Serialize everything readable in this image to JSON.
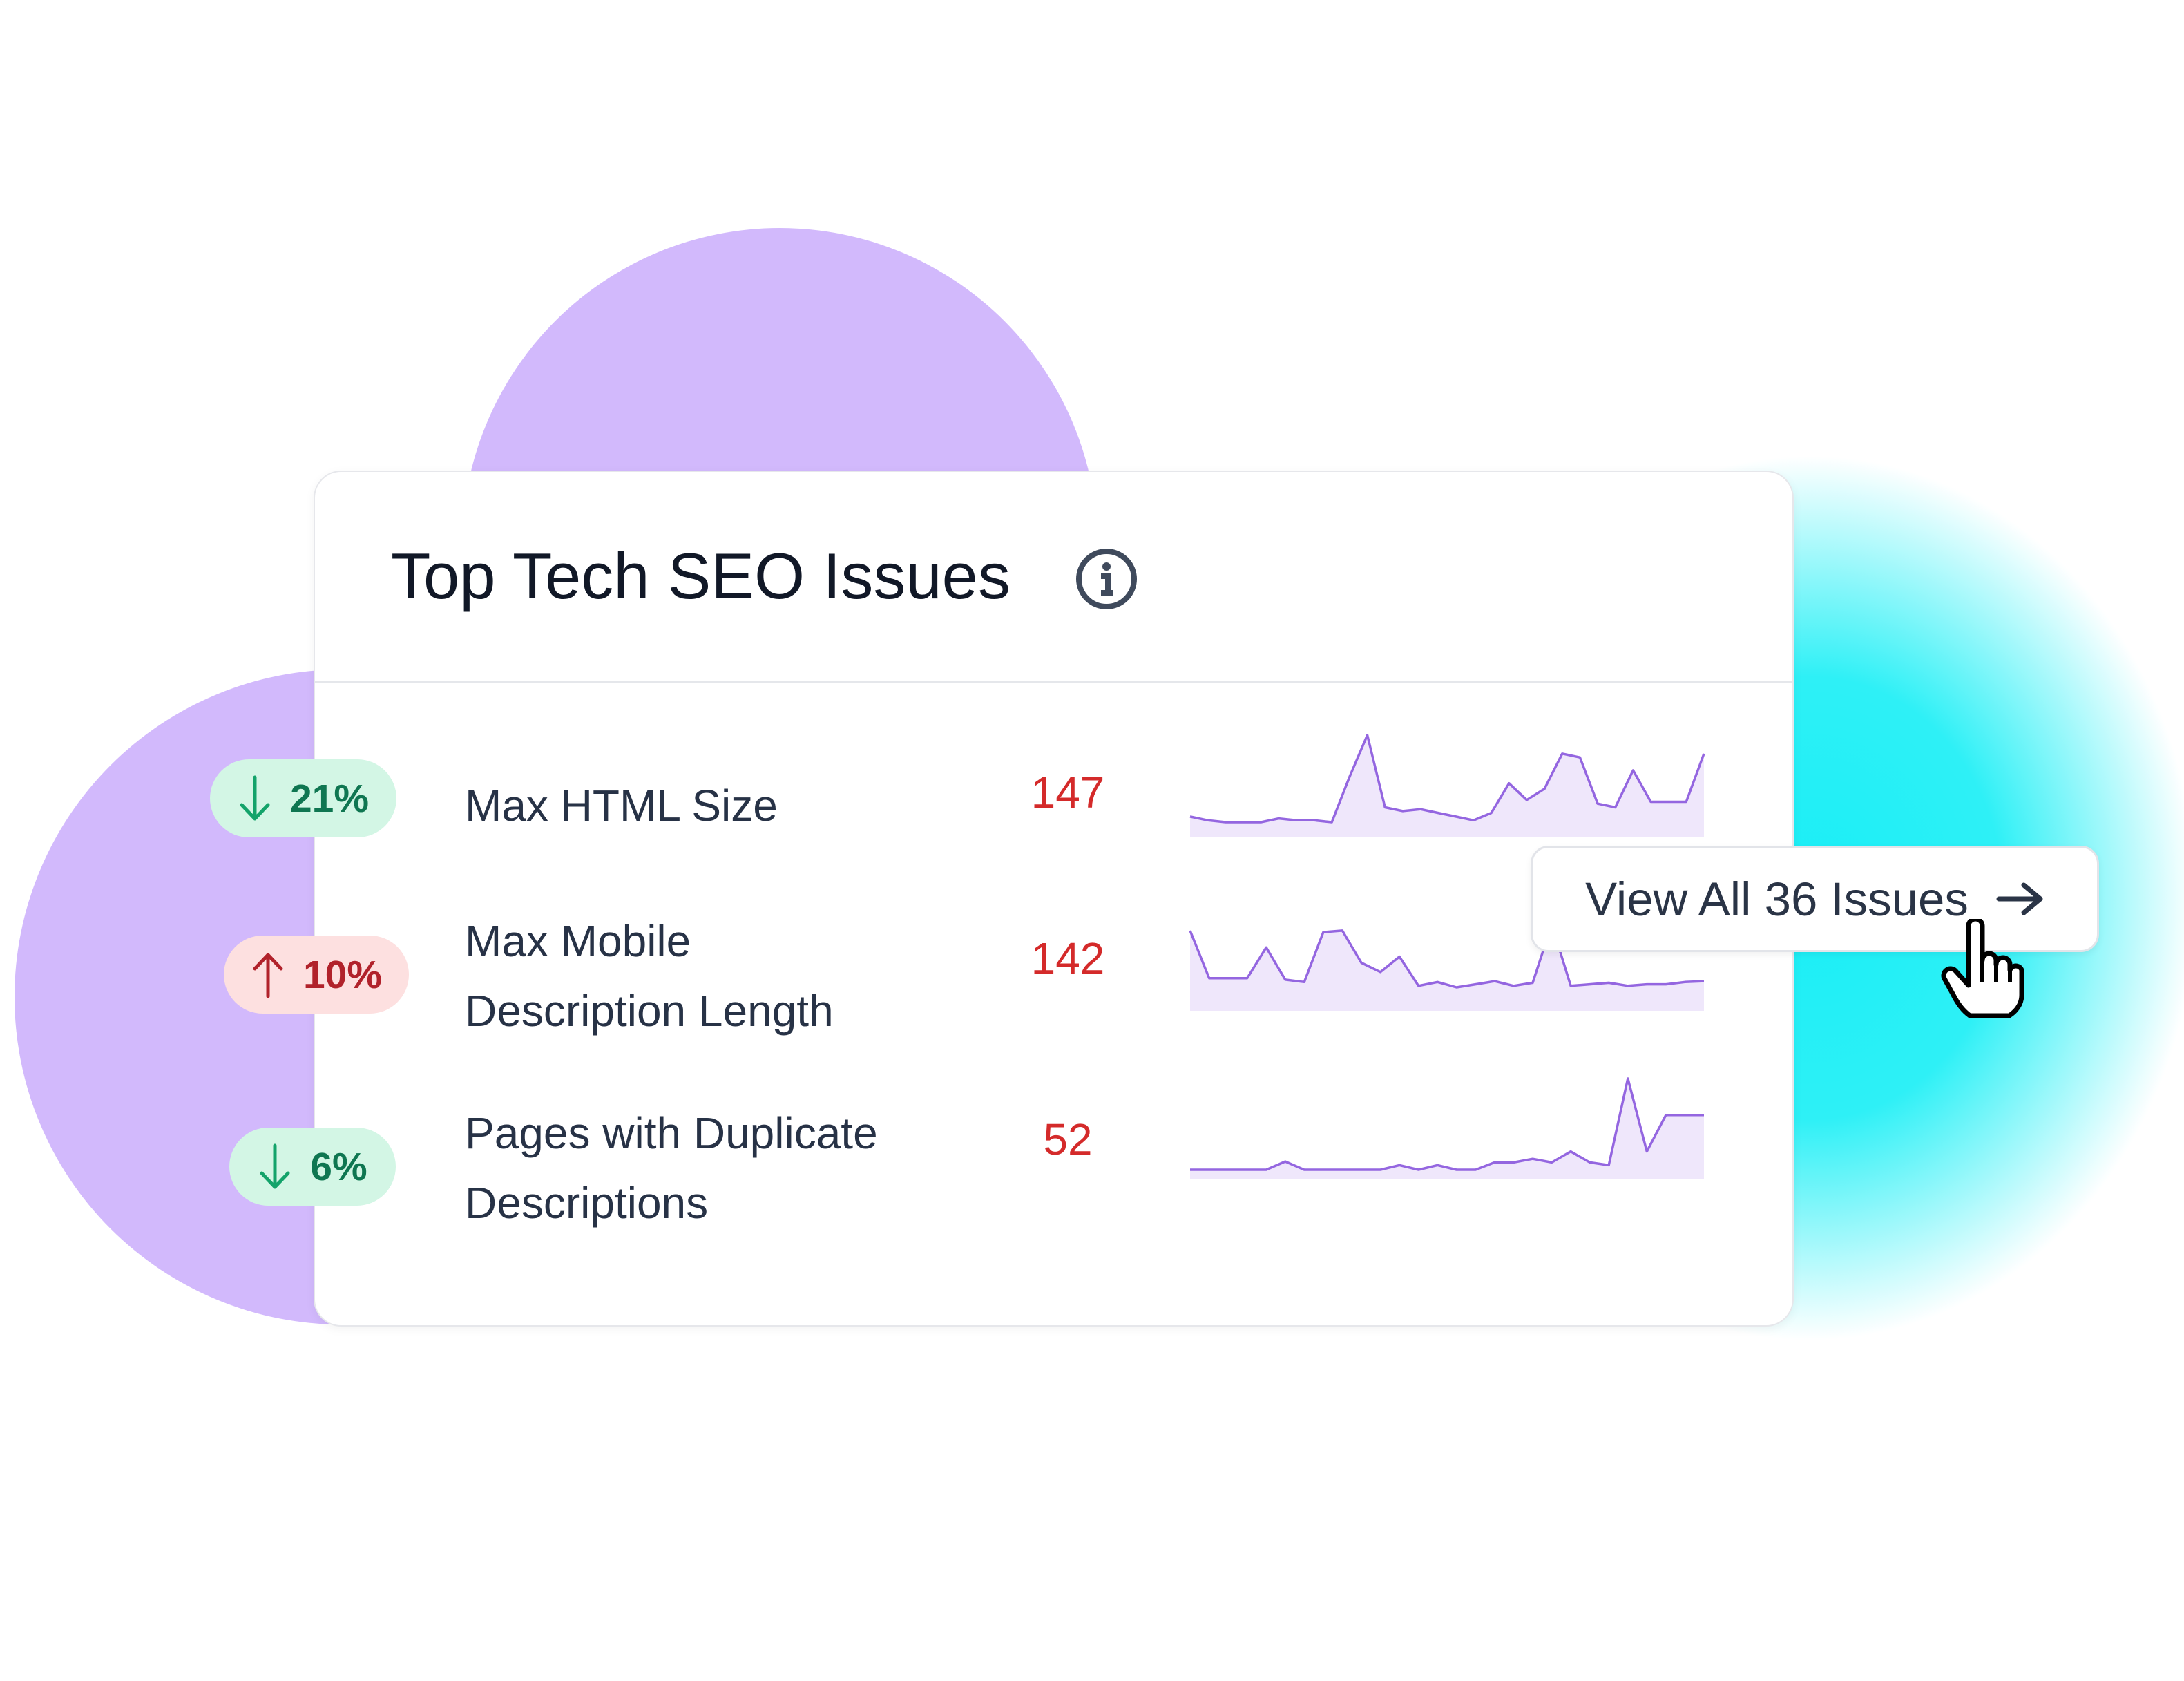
{
  "card": {
    "title": "Top Tech SEO Issues",
    "rows": [
      {
        "change": "21%",
        "direction": "down",
        "name": "Max HTML Size",
        "count": 147,
        "trend": [
          12,
          8,
          6,
          6,
          6,
          10,
          8,
          8,
          6,
          55,
          100,
          22,
          18,
          20,
          16,
          12,
          8,
          16,
          48,
          30,
          42,
          80,
          76,
          26,
          22,
          62,
          28,
          28,
          28,
          80
        ]
      },
      {
        "change": "10%",
        "direction": "up",
        "name": "Max Mobile Description Length",
        "count": 142,
        "trend": [
          92,
          30,
          30,
          30,
          70,
          28,
          25,
          90,
          92,
          50,
          38,
          58,
          20,
          25,
          18,
          22,
          26,
          20,
          24,
          100,
          20,
          22,
          24,
          20,
          22,
          22,
          25,
          26
        ]
      },
      {
        "change": "6%",
        "direction": "down",
        "name": "Pages with Duplicate Descriptions",
        "count": 52,
        "trend": [
          0,
          0,
          0,
          0,
          0,
          9,
          0,
          0,
          0,
          0,
          0,
          5,
          0,
          5,
          0,
          0,
          8,
          8,
          12,
          8,
          20,
          8,
          5,
          100,
          20,
          60,
          60,
          60
        ]
      }
    ]
  },
  "button": {
    "label": "View All 36 Issues"
  }
}
